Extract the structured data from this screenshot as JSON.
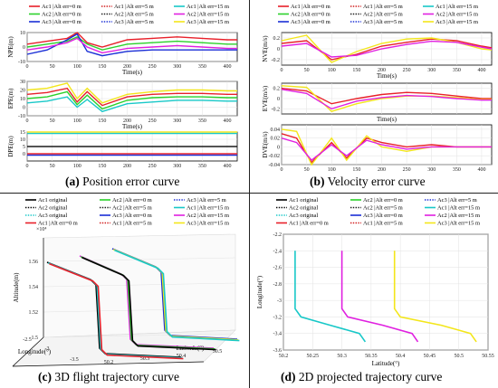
{
  "captions": {
    "a": {
      "letter": "(a)",
      "text": " Position error curve"
    },
    "b": {
      "letter": "(b)",
      "text": " Velocity error curve"
    },
    "c": {
      "letter": "(c)",
      "text": " 3D flight trajectory curve"
    },
    "d": {
      "letter": "(d)",
      "text": " 2D projected trajectory curve"
    }
  },
  "colors": {
    "ac1_0": "#e8202a",
    "ac1_5": "#d11b1b",
    "ac1_15": "#18c8c8",
    "ac2_0": "#2bd12b",
    "ac2_5": "#1b1b1b",
    "ac2_15": "#e020e0",
    "ac3_0": "#1a2fd6",
    "ac3_5": "#1a2fd6",
    "ac3_15": "#f3e61a",
    "orig1": "#000000",
    "orig2": "#000000",
    "orig3": "#18c8c8"
  },
  "legend_err": [
    {
      "label": "Ac1 |Alt err=0 m",
      "color": "#e8202a",
      "dash": "solid"
    },
    {
      "label": "Ac1 |Alt err=5 m",
      "color": "#d11b1b",
      "dash": "dot"
    },
    {
      "label": "Ac1 |Alt err=15 m",
      "color": "#18c8c8",
      "dash": "solid"
    },
    {
      "label": "Ac2 |Alt err=0 m",
      "color": "#2bd12b",
      "dash": "solid"
    },
    {
      "label": "Ac2 |Alt err=5 m",
      "color": "#1b1b1b",
      "dash": "dot"
    },
    {
      "label": "Ac2 |Alt err=15 m",
      "color": "#e020e0",
      "dash": "solid"
    },
    {
      "label": "Ac3 |Alt err=0 m",
      "color": "#1a2fd6",
      "dash": "solid"
    },
    {
      "label": "Ac3 |Alt err=5 m",
      "color": "#1a2fd6",
      "dash": "dot"
    },
    {
      "label": "Ac3 |Alt err=15 m",
      "color": "#f3e61a",
      "dash": "solid"
    }
  ],
  "legend_traj": [
    {
      "label": "Ac1 original",
      "color": "#000000",
      "dash": "solid"
    },
    {
      "label": "Ac2 |Alt err=0 m",
      "color": "#2bd12b",
      "dash": "solid"
    },
    {
      "label": "Ac3 |Alt err=5 m",
      "color": "#1a2fd6",
      "dash": "dot"
    },
    {
      "label": "Ac2 original",
      "color": "#000000",
      "dash": "dot"
    },
    {
      "label": "Ac2 |Alt err=5 m",
      "color": "#1b1b1b",
      "dash": "dot"
    },
    {
      "label": "Ac1 |Alt err=15 m",
      "color": "#18c8c8",
      "dash": "solid"
    },
    {
      "label": "Ac3 original",
      "color": "#18c8c8",
      "dash": "dot"
    },
    {
      "label": "Ac3 |Alt err=0 m",
      "color": "#1a2fd6",
      "dash": "solid"
    },
    {
      "label": "Ac2 |Alt err=15 m",
      "color": "#e020e0",
      "dash": "solid"
    },
    {
      "label": "Ac1 |Alt err=0 m",
      "color": "#e8202a",
      "dash": "solid"
    },
    {
      "label": "Ac1 |Alt err=5 m",
      "color": "#d11b1b",
      "dash": "dot"
    },
    {
      "label": "Ac3 |Alt err=15 m",
      "color": "#f3e61a",
      "dash": "solid"
    }
  ],
  "chart_data": [
    {
      "id": "NPE",
      "type": "line",
      "panel": "a",
      "ylabel": "NPE(m)",
      "xlabel": "Time(s)",
      "xlim": [
        0,
        420
      ],
      "ylim": [
        -10,
        10
      ],
      "xticks": [
        "0",
        "50",
        "100",
        "150",
        "200",
        "250",
        "300",
        "350",
        "400"
      ],
      "yticks": [
        "-10",
        "0",
        "10"
      ],
      "ytick_values": [
        -10,
        0,
        10
      ],
      "series": [
        {
          "key": "ac1_0",
          "x": [
            0,
            40,
            80,
            100,
            120,
            150,
            200,
            250,
            300,
            350,
            400,
            420
          ],
          "y": [
            2,
            4,
            6,
            10,
            3,
            0,
            5,
            6,
            7,
            6,
            5,
            5
          ]
        },
        {
          "key": "ac2_0",
          "x": [
            0,
            40,
            80,
            100,
            120,
            150,
            200,
            250,
            300,
            350,
            400,
            420
          ],
          "y": [
            0,
            2,
            4,
            7,
            2,
            -2,
            2,
            3,
            4,
            3,
            2,
            2
          ]
        },
        {
          "key": "ac3_0",
          "x": [
            0,
            40,
            80,
            100,
            120,
            150,
            200,
            250,
            300,
            350,
            400,
            420
          ],
          "y": [
            -5,
            -2,
            5,
            9,
            -3,
            -6,
            -3,
            -2,
            -2,
            -2,
            -2,
            -2
          ]
        },
        {
          "key": "ac2_15",
          "x": [
            0,
            40,
            80,
            100,
            120,
            150,
            200,
            250,
            300,
            350,
            400,
            420
          ],
          "y": [
            -2,
            0,
            3,
            6,
            0,
            -4,
            -1,
            0,
            1,
            0,
            -1,
            -1
          ]
        }
      ]
    },
    {
      "id": "EPE",
      "type": "line",
      "panel": "a",
      "ylabel": "EPE(m)",
      "xlabel": "Time(s)",
      "xlim": [
        0,
        420
      ],
      "ylim": [
        -10,
        30
      ],
      "xticks": [
        "0",
        "50",
        "100",
        "150",
        "200",
        "250",
        "300",
        "350",
        "400"
      ],
      "yticks": [
        "-10",
        "0",
        "10",
        "20",
        "30"
      ],
      "ytick_values": [
        -10,
        0,
        10,
        20,
        30
      ],
      "series": [
        {
          "key": "ac3_15",
          "x": [
            0,
            40,
            80,
            100,
            120,
            150,
            200,
            250,
            300,
            350,
            400,
            420
          ],
          "y": [
            20,
            22,
            28,
            10,
            22,
            5,
            15,
            18,
            20,
            20,
            19,
            19
          ]
        },
        {
          "key": "ac1_0",
          "x": [
            0,
            40,
            80,
            100,
            120,
            150,
            200,
            250,
            300,
            350,
            400,
            420
          ],
          "y": [
            15,
            17,
            22,
            6,
            18,
            2,
            12,
            15,
            16,
            16,
            15,
            15
          ]
        },
        {
          "key": "ac2_0",
          "x": [
            0,
            40,
            80,
            100,
            120,
            150,
            200,
            250,
            300,
            350,
            400,
            420
          ],
          "y": [
            10,
            12,
            18,
            3,
            14,
            -2,
            8,
            11,
            12,
            12,
            11,
            11
          ]
        },
        {
          "key": "ac1_15",
          "x": [
            0,
            40,
            80,
            100,
            120,
            150,
            200,
            250,
            300,
            350,
            400,
            420
          ],
          "y": [
            5,
            7,
            12,
            0,
            9,
            -5,
            4,
            6,
            8,
            8,
            7,
            7
          ]
        }
      ]
    },
    {
      "id": "DPE",
      "type": "line",
      "panel": "a",
      "ylabel": "DPE(m)",
      "xlabel": "Time(s)",
      "xlim": [
        0,
        420
      ],
      "ylim": [
        -5,
        15
      ],
      "xticks": [
        "0",
        "50",
        "100",
        "150",
        "200",
        "250",
        "300",
        "350",
        "400"
      ],
      "yticks": [
        "0",
        "5",
        "10",
        "15"
      ],
      "ytick_values": [
        0,
        5,
        10,
        15
      ],
      "series": [
        {
          "key": "ac3_15",
          "x": [
            0,
            420
          ],
          "y": [
            15,
            15
          ]
        },
        {
          "key": "ac1_15",
          "x": [
            0,
            420
          ],
          "y": [
            14,
            14
          ]
        },
        {
          "key": "ac2_5",
          "x": [
            0,
            420
          ],
          "y": [
            5,
            5
          ]
        },
        {
          "key": "ac1_0",
          "x": [
            0,
            420
          ],
          "y": [
            0,
            0
          ]
        },
        {
          "key": "ac3_0",
          "x": [
            0,
            420
          ],
          "y": [
            -1,
            -1
          ]
        }
      ]
    },
    {
      "id": "NVE",
      "type": "line",
      "panel": "b",
      "ylabel": "NVE(m/s)",
      "xlabel": "Time(s)",
      "xlim": [
        0,
        420
      ],
      "ylim": [
        -0.3,
        0.3
      ],
      "xticks": [
        "0",
        "50",
        "100",
        "150",
        "200",
        "250",
        "300",
        "350",
        "400"
      ],
      "yticks": [
        "-0.2",
        "0",
        "0.2"
      ],
      "ytick_values": [
        -0.2,
        0,
        0.2
      ],
      "series": [
        {
          "key": "ac1_0",
          "x": [
            0,
            50,
            100,
            150,
            200,
            250,
            300,
            350,
            400,
            420
          ],
          "y": [
            0.1,
            0.15,
            -0.2,
            -0.1,
            0.05,
            0.12,
            0.18,
            0.15,
            0.05,
            0.02
          ]
        },
        {
          "key": "ac3_15",
          "x": [
            0,
            50,
            100,
            150,
            200,
            250,
            300,
            350,
            400,
            420
          ],
          "y": [
            0.15,
            0.25,
            -0.25,
            -0.05,
            0.1,
            0.18,
            0.2,
            0.12,
            0.0,
            -0.02
          ]
        },
        {
          "key": "ac2_15",
          "x": [
            0,
            50,
            100,
            150,
            200,
            250,
            300,
            350,
            400,
            420
          ],
          "y": [
            0.05,
            0.1,
            -0.15,
            -0.12,
            0.0,
            0.08,
            0.14,
            0.12,
            0.03,
            0.0
          ]
        }
      ]
    },
    {
      "id": "EVE",
      "type": "line",
      "panel": "b",
      "ylabel": "EVE(m/s)",
      "xlabel": "Time(s)",
      "xlim": [
        0,
        420
      ],
      "ylim": [
        -0.3,
        0.3
      ],
      "xticks": [
        "0",
        "50",
        "100",
        "150",
        "200",
        "250",
        "300",
        "350",
        "400"
      ],
      "yticks": [
        "-0.2",
        "0",
        "0.2"
      ],
      "ytick_values": [
        -0.2,
        0,
        0.2
      ],
      "series": [
        {
          "key": "ac1_0",
          "x": [
            0,
            50,
            100,
            150,
            200,
            250,
            300,
            350,
            400,
            420
          ],
          "y": [
            0.2,
            0.15,
            -0.1,
            0.0,
            0.08,
            0.12,
            0.1,
            0.05,
            0.0,
            0.0
          ]
        },
        {
          "key": "ac3_15",
          "x": [
            0,
            50,
            100,
            150,
            200,
            250,
            300,
            350,
            400,
            420
          ],
          "y": [
            0.25,
            0.22,
            -0.25,
            -0.1,
            0.0,
            0.05,
            0.05,
            0.02,
            -0.02,
            -0.02
          ]
        },
        {
          "key": "ac2_15",
          "x": [
            0,
            50,
            100,
            150,
            200,
            250,
            300,
            350,
            400,
            420
          ],
          "y": [
            0.18,
            0.1,
            -0.2,
            -0.05,
            0.02,
            0.06,
            0.04,
            0.0,
            -0.03,
            -0.03
          ]
        }
      ]
    },
    {
      "id": "DVE",
      "type": "line",
      "panel": "b",
      "ylabel": "DVE(m/s)",
      "xlabel": "Time(s)",
      "xlim": [
        0,
        420
      ],
      "ylim": [
        -0.04,
        0.05
      ],
      "xticks": [
        "0",
        "50",
        "100",
        "150",
        "200",
        "250",
        "300",
        "350",
        "400"
      ],
      "yticks": [
        "-0.04",
        "-0.02",
        "0",
        "0.02",
        "0.04"
      ],
      "ytick_values": [
        -0.04,
        -0.02,
        0,
        0.02,
        0.04
      ],
      "series": [
        {
          "key": "ac1_0",
          "x": [
            0,
            30,
            60,
            100,
            130,
            170,
            200,
            250,
            300,
            350,
            400,
            420
          ],
          "y": [
            0.03,
            0.02,
            -0.035,
            0.01,
            -0.025,
            0.02,
            0.01,
            0.0,
            0.005,
            0.0,
            0.0,
            0.0
          ]
        },
        {
          "key": "ac3_15",
          "x": [
            0,
            30,
            60,
            100,
            130,
            170,
            200,
            250,
            300,
            350,
            400,
            420
          ],
          "y": [
            0.04,
            0.035,
            -0.04,
            0.02,
            -0.03,
            0.025,
            0.0,
            -0.01,
            0.0,
            0.0,
            0.0,
            0.0
          ]
        },
        {
          "key": "ac2_15",
          "x": [
            0,
            30,
            60,
            100,
            130,
            170,
            200,
            250,
            300,
            350,
            400,
            420
          ],
          "y": [
            0.02,
            0.01,
            -0.03,
            0.005,
            -0.02,
            0.015,
            0.005,
            -0.005,
            0.0,
            0.0,
            0.0,
            0.0
          ]
        }
      ]
    },
    {
      "id": "3D",
      "type": "line",
      "panel": "c",
      "zlabel": "Altitude(m)",
      "xlabel": "Longitude(°)",
      "ylabel": "Latitude(°)",
      "zexp": "×10⁴",
      "zticks": [
        "1.5",
        "1.52",
        "1.54",
        "1.56"
      ],
      "xticks": [
        "-2.5",
        "-3",
        "-3.5"
      ],
      "yticks": [
        "50.2",
        "50.3",
        "50.4",
        "50.5"
      ]
    },
    {
      "id": "2D",
      "type": "line",
      "panel": "d",
      "xlabel": "Latitude(°)",
      "ylabel": "Longitude(°)",
      "xlim": [
        50.2,
        50.55
      ],
      "ylim": [
        -3.6,
        -2.2
      ],
      "xticks": [
        "50.2",
        "50.25",
        "50.3",
        "50.35",
        "50.4",
        "50.45",
        "50.5",
        "50.55"
      ],
      "xtick_values": [
        50.2,
        50.25,
        50.3,
        50.35,
        50.4,
        50.45,
        50.5,
        50.55
      ],
      "yticks": [
        "-2.2",
        "-2.4",
        "-2.6",
        "-2.8",
        "-3",
        "-3.2",
        "-3.4",
        "-3.6"
      ],
      "ytick_values": [
        -2.2,
        -2.4,
        -2.6,
        -2.8,
        -3.0,
        -3.2,
        -3.4,
        -3.6
      ],
      "series": [
        {
          "key": "ac1_15",
          "x": [
            50.22,
            50.22,
            50.23,
            50.28,
            50.33,
            50.34
          ],
          "y": [
            -2.4,
            -3.1,
            -3.2,
            -3.3,
            -3.4,
            -3.5
          ]
        },
        {
          "key": "ac2_15",
          "x": [
            50.3,
            50.3,
            50.31,
            50.37,
            50.42,
            50.43
          ],
          "y": [
            -2.4,
            -3.1,
            -3.2,
            -3.3,
            -3.4,
            -3.5
          ]
        },
        {
          "key": "ac3_15",
          "x": [
            50.39,
            50.39,
            50.4,
            50.47,
            50.52,
            50.53
          ],
          "y": [
            -2.4,
            -3.1,
            -3.2,
            -3.3,
            -3.4,
            -3.5
          ]
        }
      ]
    }
  ]
}
